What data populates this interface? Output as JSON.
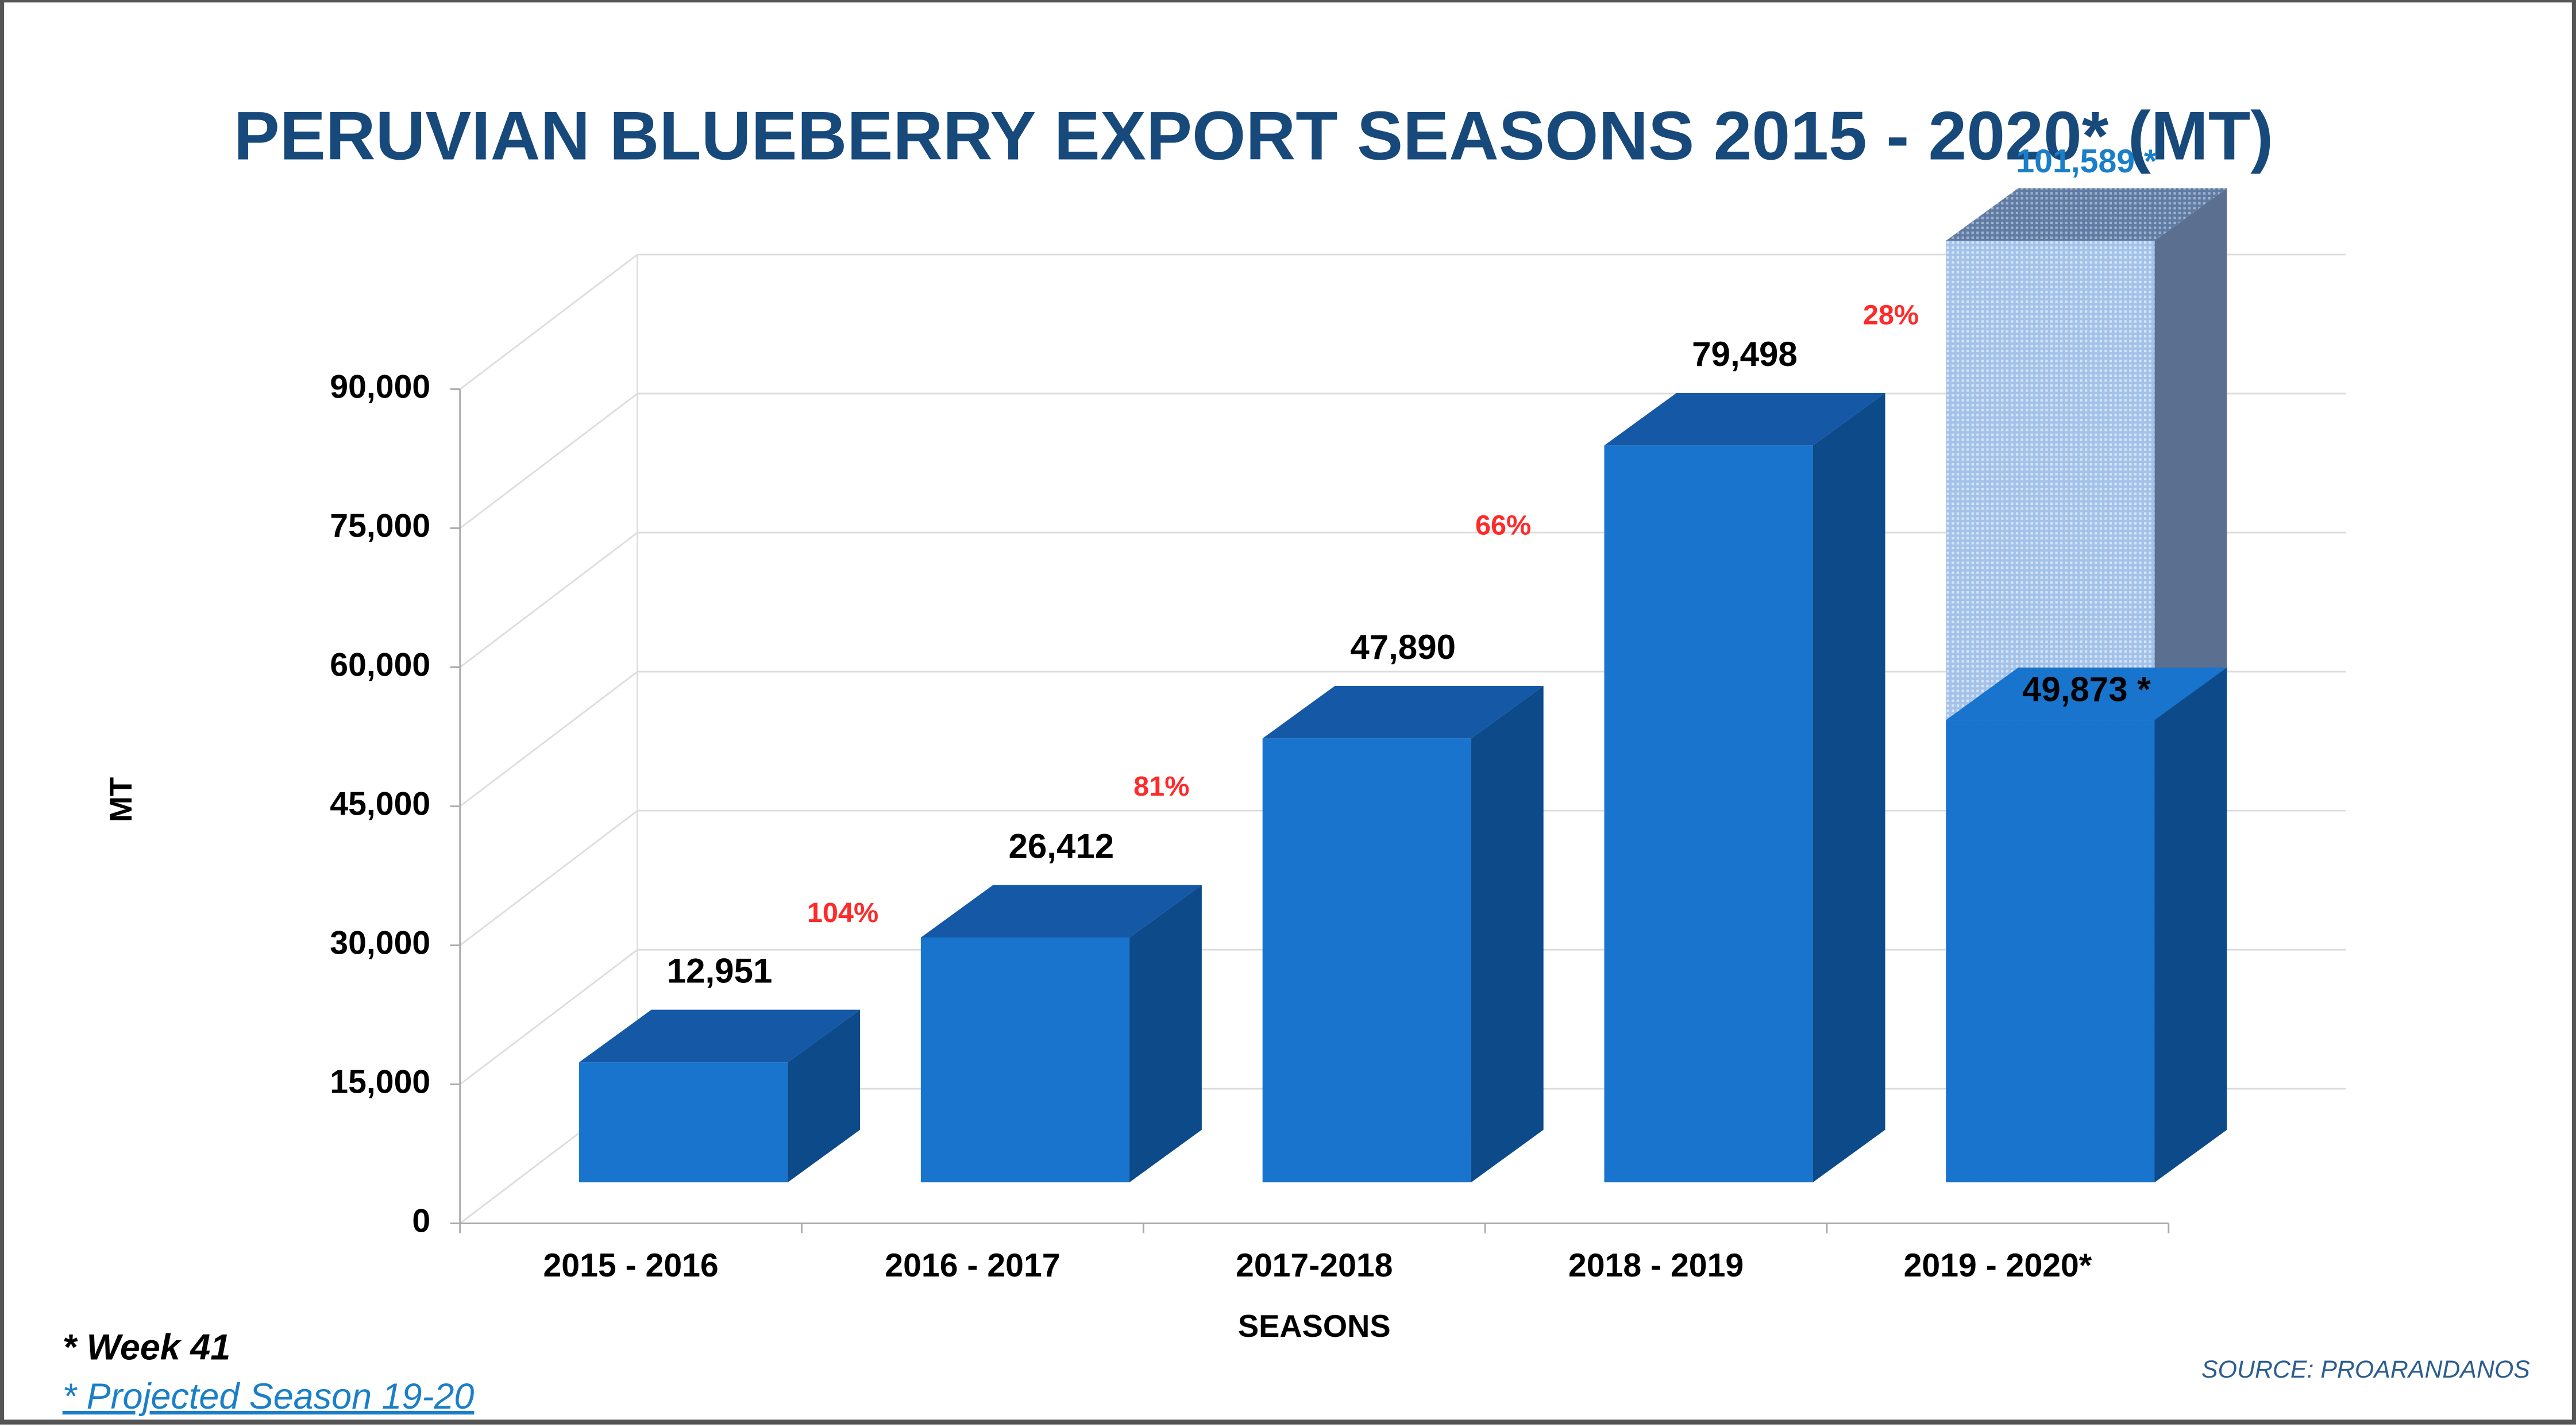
{
  "chart_data": {
    "type": "bar3d",
    "title": "PERUVIAN BLUEBERRY EXPORT SEASONS 2015 - 2020* (MT)",
    "ylabel": "MT",
    "xlabel": "SEASONS",
    "categories": [
      "2015 - 2016",
      "2016 - 2017",
      "2017-2018",
      "2018 - 2019",
      "2019 - 2020*"
    ],
    "series": [
      {
        "color": "#1874cd",
        "values": [
          12951,
          26412,
          47890,
          79498,
          49873
        ],
        "value_labels": [
          "12,951",
          "26,412",
          "47,890",
          "79,498",
          "49,873 *"
        ]
      },
      {
        "color": "#a3c2ea",
        "values": [
          null,
          null,
          null,
          null,
          101589
        ],
        "value_labels": [
          null,
          null,
          null,
          null,
          "101,589 *"
        ]
      }
    ],
    "annotations": [
      "104%",
      "81%",
      "66%",
      "28%"
    ],
    "ylim": [
      0,
      90000
    ],
    "yticks": [
      {
        "value": 0,
        "label": "0"
      },
      {
        "value": 15000,
        "label": "15,000"
      },
      {
        "value": 30000,
        "label": "30,000"
      },
      {
        "value": 45000,
        "label": "45,000"
      },
      {
        "value": 60000,
        "label": "60,000"
      },
      {
        "value": 75000,
        "label": "75,000"
      },
      {
        "value": 90000,
        "label": "90,000"
      }
    ],
    "grid": true,
    "footnotes": [
      "* Week 41",
      "* Projected Season 19-20"
    ],
    "source": "SOURCE: PROARANDANOS"
  }
}
